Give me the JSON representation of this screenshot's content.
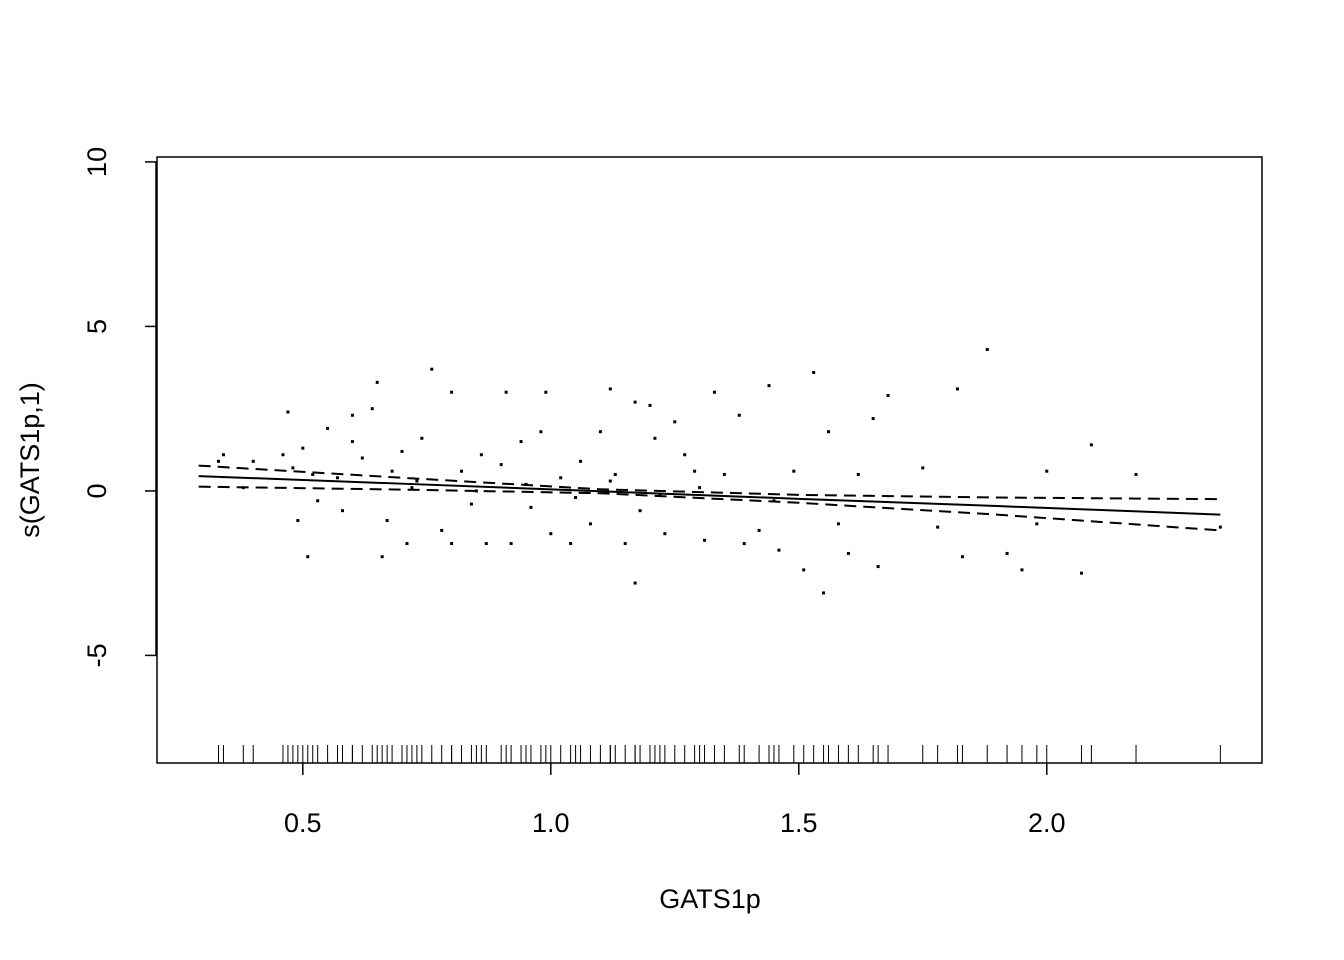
{
  "chart_data": {
    "type": "gam",
    "x_label": "GATS1p",
    "y_label": "s(GATS1p,1)",
    "xlim": [
      0.206,
      2.434
    ],
    "ylim": [
      -8.27,
      10.15
    ],
    "xticks": [
      0.5,
      {
        "value": 1,
        "label": "1.0"
      },
      1.5,
      {
        "value": 2,
        "label": "2.0"
      }
    ],
    "yticks": [
      -5,
      0,
      5,
      10
    ],
    "rug": true,
    "series": [
      {
        "style": "solid",
        "color": "#000000",
        "x": [
          0.29,
          0.7,
          1.1,
          1.5,
          1.9,
          2.35
        ],
        "values": [
          0.45,
          0.22,
          -0.01,
          -0.24,
          -0.46,
          -0.72
        ]
      },
      {
        "style": "dashed",
        "color": "#000000",
        "x": [
          0.29,
          0.7,
          1.1,
          1.5,
          1.9,
          2.35
        ],
        "values": [
          0.77,
          0.4,
          0.05,
          -0.12,
          -0.2,
          -0.25
        ]
      },
      {
        "style": "dashed",
        "color": "#000000",
        "x": [
          0.29,
          0.7,
          1.1,
          1.5,
          1.9,
          2.35
        ],
        "values": [
          0.13,
          0.04,
          -0.07,
          -0.36,
          -0.72,
          -1.2
        ]
      }
    ],
    "points": {
      "color": "#000000",
      "x": [
        0.33,
        0.34,
        0.38,
        0.4,
        0.46,
        0.47,
        0.48,
        0.49,
        0.5,
        0.51,
        0.52,
        0.53,
        0.55,
        0.57,
        0.58,
        0.6,
        0.6,
        0.62,
        0.64,
        0.65,
        0.66,
        0.67,
        0.68,
        0.7,
        0.71,
        0.73,
        0.74,
        0.76,
        0.78,
        0.8,
        0.8,
        0.82,
        0.84,
        0.86,
        0.87,
        0.9,
        0.91,
        0.92,
        0.94,
        0.96,
        0.98,
        0.99,
        1.0,
        1.02,
        1.04,
        1.06,
        1.08,
        1.1,
        1.12,
        1.13,
        1.15,
        1.17,
        1.17,
        1.18,
        1.2,
        1.21,
        1.23,
        1.25,
        1.27,
        1.29,
        1.31,
        1.33,
        1.35,
        1.38,
        1.39,
        1.42,
        1.44,
        1.46,
        1.49,
        1.51,
        1.53,
        1.55,
        1.56,
        1.58,
        1.6,
        1.62,
        1.65,
        1.66,
        1.68,
        1.75,
        1.78,
        1.82,
        1.83,
        1.88,
        1.92,
        1.95,
        1.98,
        2.0,
        2.07,
        2.09,
        2.18,
        2.35,
        0.72,
        0.85,
        0.95,
        1.05,
        1.12,
        1.22,
        1.3,
        1.45
      ],
      "values": [
        0.9,
        1.1,
        0.1,
        0.9,
        1.1,
        2.4,
        0.7,
        -0.9,
        1.3,
        -2.0,
        0.5,
        -0.3,
        1.9,
        0.4,
        -0.6,
        2.3,
        1.5,
        1.0,
        2.5,
        3.3,
        -2.0,
        -0.9,
        0.6,
        1.2,
        -1.6,
        0.3,
        1.6,
        3.7,
        -1.2,
        3.0,
        -1.6,
        0.6,
        -0.4,
        1.1,
        -1.6,
        0.8,
        3.0,
        -1.6,
        1.5,
        -0.5,
        1.8,
        3.0,
        -1.3,
        0.4,
        -1.6,
        0.9,
        -1.0,
        1.8,
        3.1,
        0.5,
        -1.6,
        2.7,
        -2.8,
        -0.6,
        2.6,
        1.6,
        -1.3,
        2.1,
        1.1,
        0.6,
        -1.5,
        3.0,
        0.5,
        2.3,
        -1.6,
        -1.2,
        3.2,
        -1.8,
        0.6,
        -2.4,
        3.6,
        -3.1,
        1.8,
        -1.0,
        -1.9,
        0.5,
        2.2,
        -2.3,
        2.9,
        0.7,
        -1.1,
        3.1,
        -2.0,
        4.3,
        -1.9,
        -2.4,
        -1.0,
        0.6,
        -2.5,
        1.4,
        0.5,
        -1.1,
        0.1,
        0.0,
        0.2,
        -0.2,
        0.3,
        -0.1,
        0.1,
        -0.3
      ]
    }
  }
}
